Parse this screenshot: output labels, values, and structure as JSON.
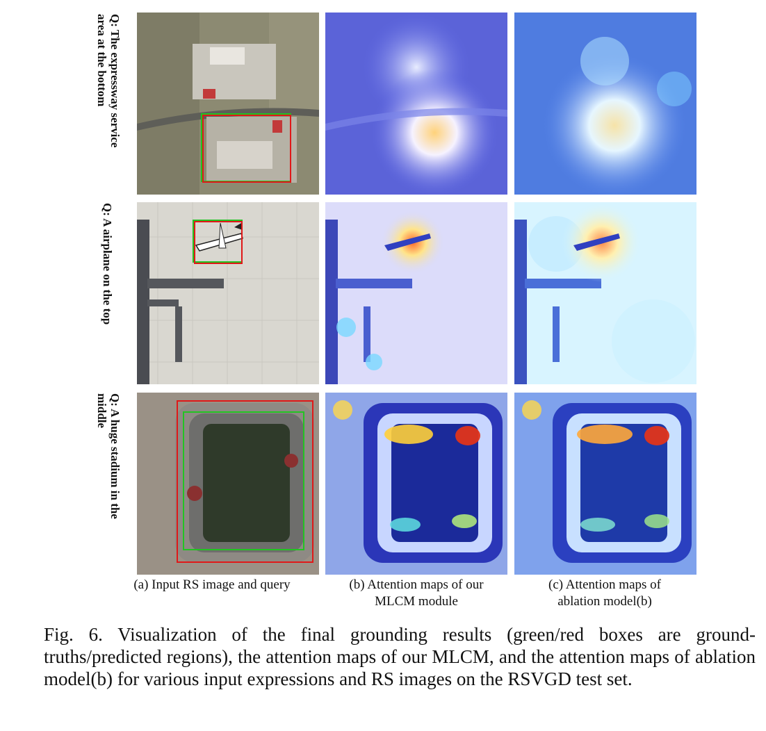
{
  "rows": [
    {
      "query": "Q: The expressway service\narea at the bottom"
    },
    {
      "query": "Q: A airplane on the top"
    },
    {
      "query": "Q: A huge stadium in the\nmiddle"
    }
  ],
  "column_captions": [
    "(a) Input RS image and query",
    "(b) Attention maps of our\nMLCM module",
    "(c)  Attention maps  of\nablation model(b)"
  ],
  "figure_caption": "Fig. 6.  Visualization of the final grounding results (green/red boxes are ground-truths/predicted regions), the attention maps of our MLCM, and the attention maps of ablation model(b) for various input expressions and RS images on the RSVGD test set.",
  "colors": {
    "ground_truth_box": "#22c322",
    "predicted_box": "#e01818"
  }
}
